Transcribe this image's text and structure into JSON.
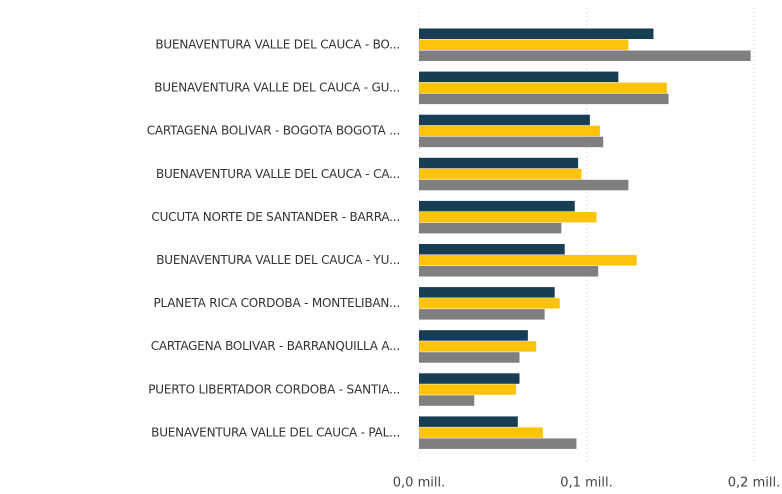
{
  "chart_data": {
    "type": "bar",
    "orientation": "horizontal",
    "categories": [
      "BUENAVENTURA VALLE DEL CAUCA - BO...",
      "BUENAVENTURA VALLE DEL CAUCA - GU...",
      "CARTAGENA BOLIVAR - BOGOTA BOGOTA ...",
      "BUENAVENTURA VALLE DEL CAUCA - CA...",
      "CUCUTA NORTE DE SANTANDER - BARRA...",
      "BUENAVENTURA VALLE DEL CAUCA - YU...",
      "PLANETA RICA CORDOBA - MONTELIBAN...",
      "CARTAGENA BOLIVAR - BARRANQUILLA A...",
      "PUERTO LIBERTADOR CORDOBA - SANTIA...",
      "BUENAVENTURA VALLE DEL CAUCA - PAL..."
    ],
    "series": [
      {
        "color": "#183e56",
        "values": [
          0.14,
          0.119,
          0.102,
          0.095,
          0.093,
          0.087,
          0.081,
          0.065,
          0.06,
          0.059
        ]
      },
      {
        "color": "#fcc30b",
        "values": [
          0.125,
          0.148,
          0.108,
          0.097,
          0.106,
          0.13,
          0.084,
          0.07,
          0.058,
          0.074
        ]
      },
      {
        "color": "#7f7f7f",
        "values": [
          0.198,
          0.149,
          0.11,
          0.125,
          0.085,
          0.107,
          0.075,
          0.06,
          0.033,
          0.094
        ]
      }
    ],
    "xlim": [
      0,
      0.2
    ],
    "xticks": [
      {
        "value": 0,
        "label": "0,0 mill."
      },
      {
        "value": 0.1,
        "label": "0,1 mill."
      },
      {
        "value": 0.2,
        "label": "0,2 mill."
      }
    ],
    "grid": true
  }
}
